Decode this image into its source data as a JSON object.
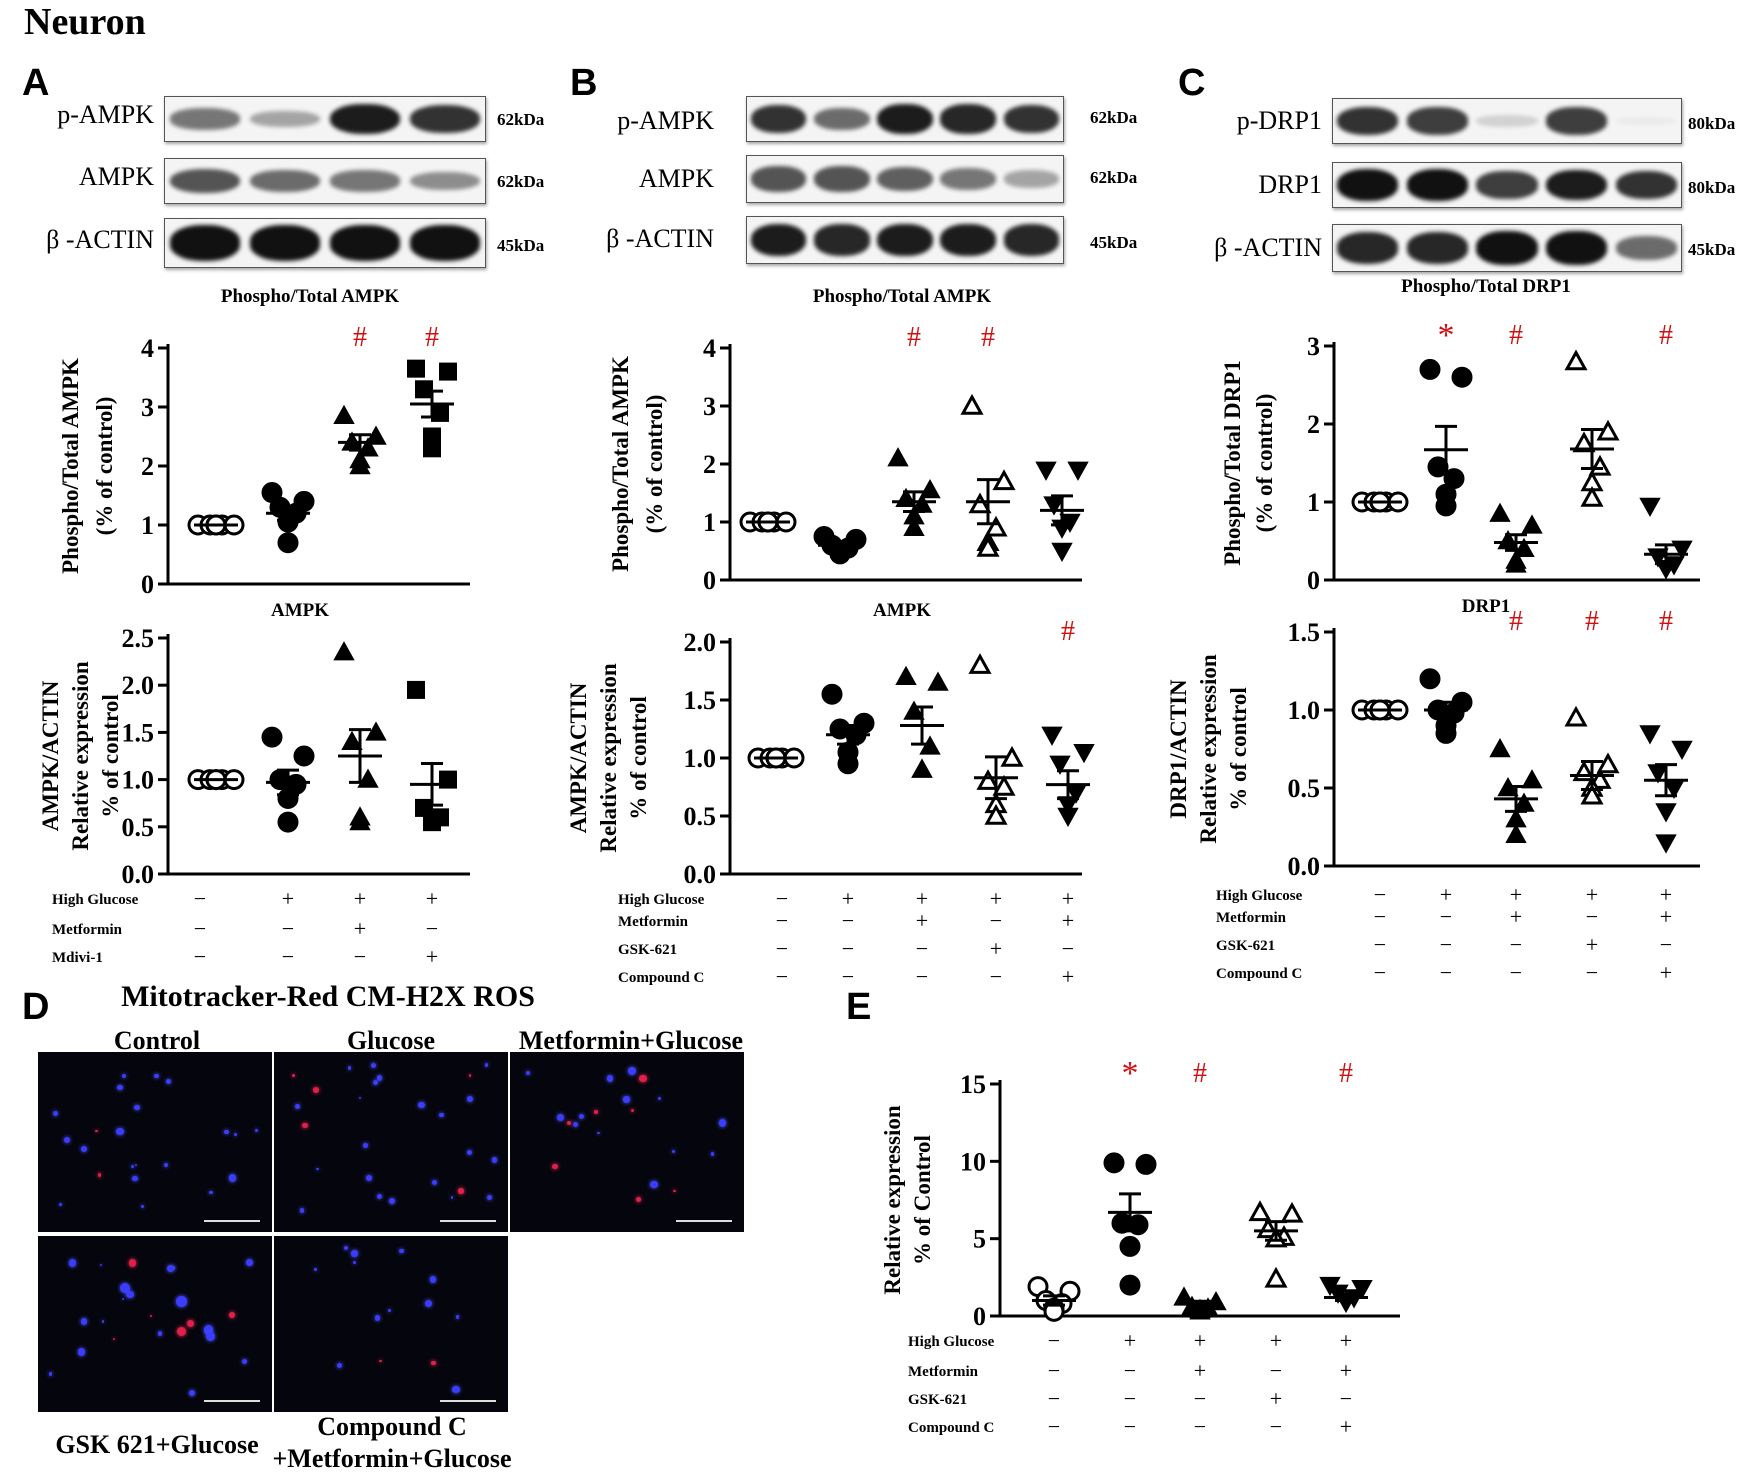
{
  "figure_title": "Neuron",
  "panel_letters": {
    "A": "A",
    "B": "B",
    "C": "C",
    "D": "D",
    "E": "E"
  },
  "colors": {
    "significance": "#d01010",
    "ink": "#000000"
  },
  "blots": {
    "A": {
      "rows": [
        {
          "label": "p-AMPK",
          "kda": "62kDa",
          "intensity": [
            0.55,
            0.35,
            0.95,
            0.85
          ]
        },
        {
          "label": "AMPK",
          "kda": "62kDa",
          "intensity": [
            0.7,
            0.6,
            0.55,
            0.45
          ]
        },
        {
          "label": "β -ACTIN",
          "kda": "45kDa",
          "intensity": [
            1,
            1,
            1,
            1
          ]
        }
      ]
    },
    "B": {
      "rows": [
        {
          "label": "p-AMPK",
          "kda": "62kDa",
          "intensity": [
            0.85,
            0.6,
            0.95,
            0.9,
            0.85
          ]
        },
        {
          "label": "AMPK",
          "kda": "62kDa",
          "intensity": [
            0.7,
            0.7,
            0.65,
            0.55,
            0.35
          ]
        },
        {
          "label": "β -ACTIN",
          "kda": "45kDa",
          "intensity": [
            0.95,
            0.9,
            0.95,
            0.95,
            0.9
          ]
        }
      ]
    },
    "C": {
      "rows": [
        {
          "label": "p-DRP1",
          "kda": "80kDa",
          "intensity": [
            0.85,
            0.8,
            0.15,
            0.8,
            0.02
          ]
        },
        {
          "label": "DRP1",
          "kda": "80kDa",
          "intensity": [
            1,
            1,
            0.8,
            0.95,
            0.85
          ]
        },
        {
          "label": "β -ACTIN",
          "kda": "45kDa",
          "intensity": [
            0.9,
            0.9,
            1,
            1,
            0.6
          ]
        }
      ]
    }
  },
  "chart_data": [
    {
      "id": "A-top",
      "type": "scatter",
      "title": "Phospho/Total AMPK",
      "ylabel": [
        "Phospho/Total AMPK",
        "(% of control)"
      ],
      "ylim": [
        0,
        4
      ],
      "yticks": [
        "0",
        "1",
        "2",
        "3",
        "4"
      ],
      "groups": [
        {
          "marker": "circle-open",
          "points": [
            1,
            1,
            1,
            1,
            1,
            1
          ],
          "mean": 1,
          "sem": 0,
          "sig": ""
        },
        {
          "marker": "circle",
          "points": [
            1.55,
            1.4,
            1.3,
            1.2,
            1.05,
            0.7
          ],
          "mean": 1.2,
          "sem": 0.12,
          "sig": ""
        },
        {
          "marker": "triangle",
          "points": [
            2.85,
            2.5,
            2.4,
            2.3,
            2.1,
            2.0
          ],
          "mean": 2.4,
          "sem": 0.13,
          "sig": "#"
        },
        {
          "marker": "square",
          "points": [
            3.65,
            3.6,
            3.3,
            2.9,
            2.5,
            2.3
          ],
          "mean": 3.05,
          "sem": 0.22,
          "sig": "#"
        }
      ]
    },
    {
      "id": "A-bottom",
      "type": "scatter",
      "title": "AMPK",
      "ylabel": [
        "AMPK/ACTIN",
        "Relative expression",
        "% of control"
      ],
      "ylim": [
        0,
        2.5
      ],
      "yticks": [
        "0.0",
        "0.5",
        "1.0",
        "1.5",
        "2.0",
        "2.5"
      ],
      "groups": [
        {
          "marker": "circle-open",
          "points": [
            1,
            1,
            1,
            1,
            1,
            1
          ],
          "mean": 1,
          "sem": 0,
          "sig": ""
        },
        {
          "marker": "circle",
          "points": [
            1.45,
            1.25,
            1.0,
            0.95,
            0.8,
            0.55
          ],
          "mean": 0.97,
          "sem": 0.13,
          "sig": ""
        },
        {
          "marker": "triangle",
          "points": [
            2.35,
            1.5,
            1.4,
            1.0,
            0.6,
            0.55
          ],
          "mean": 1.25,
          "sem": 0.28,
          "sig": ""
        },
        {
          "marker": "square",
          "points": [
            1.95,
            1.0,
            0.7,
            0.6,
            0.55,
            0.55
          ],
          "mean": 0.95,
          "sem": 0.22,
          "sig": ""
        }
      ]
    },
    {
      "id": "B-top",
      "type": "scatter",
      "title": "Phospho/Total AMPK",
      "ylabel": [
        "Phospho/Total AMPK",
        "(% of control)"
      ],
      "ylim": [
        0,
        4
      ],
      "yticks": [
        "0",
        "1",
        "2",
        "3",
        "4"
      ],
      "groups": [
        {
          "marker": "circle-open",
          "points": [
            1,
            1,
            1,
            1,
            1,
            1
          ],
          "mean": 1,
          "sem": 0,
          "sig": ""
        },
        {
          "marker": "circle",
          "points": [
            0.75,
            0.7,
            0.6,
            0.55,
            0.5,
            0.45
          ],
          "mean": 0.6,
          "sem": 0.05,
          "sig": ""
        },
        {
          "marker": "triangle",
          "points": [
            2.1,
            1.55,
            1.4,
            1.3,
            1.1,
            0.9
          ],
          "mean": 1.35,
          "sem": 0.17,
          "sig": "#"
        },
        {
          "marker": "triangle-open",
          "points": [
            3.0,
            1.7,
            1.3,
            0.9,
            0.65,
            0.55
          ],
          "mean": 1.35,
          "sem": 0.38,
          "sig": "#"
        },
        {
          "marker": "triangle-down",
          "points": [
            1.9,
            1.9,
            1.3,
            1.0,
            0.9,
            0.5
          ],
          "mean": 1.2,
          "sem": 0.25,
          "sig": ""
        }
      ]
    },
    {
      "id": "B-bottom",
      "type": "scatter",
      "title": "AMPK",
      "ylabel": [
        "AMPK/ACTIN",
        "Relative expression",
        "% of control"
      ],
      "ylim": [
        0,
        2.0
      ],
      "yticks": [
        "0.0",
        "0.5",
        "1.0",
        "1.5",
        "2.0"
      ],
      "groups": [
        {
          "marker": "circle-open",
          "points": [
            1,
            1,
            1,
            1,
            1,
            1
          ],
          "mean": 1,
          "sem": 0,
          "sig": ""
        },
        {
          "marker": "circle",
          "points": [
            1.55,
            1.3,
            1.25,
            1.2,
            1.05,
            0.95
          ],
          "mean": 1.2,
          "sem": 0.08,
          "sig": ""
        },
        {
          "marker": "triangle",
          "points": [
            1.7,
            1.65,
            1.4,
            1.1,
            0.9,
            0.9
          ],
          "mean": 1.28,
          "sem": 0.16,
          "sig": ""
        },
        {
          "marker": "triangle-open",
          "points": [
            1.8,
            1.0,
            0.8,
            0.75,
            0.6,
            0.5
          ],
          "mean": 0.83,
          "sem": 0.18,
          "sig": ""
        },
        {
          "marker": "triangle-down",
          "points": [
            1.2,
            1.05,
            0.95,
            0.7,
            0.6,
            0.5
          ],
          "mean": 0.77,
          "sem": 0.12,
          "sig": "#"
        }
      ]
    },
    {
      "id": "C-top",
      "type": "scatter",
      "title": "Phospho/Total DRP1",
      "ylabel": [
        "Phospho/Total DRP1",
        "(% of control)"
      ],
      "ylim": [
        0,
        3
      ],
      "yticks": [
        "0",
        "1",
        "2",
        "3"
      ],
      "groups": [
        {
          "marker": "circle-open",
          "points": [
            1,
            1,
            1,
            1,
            1,
            1
          ],
          "mean": 1,
          "sem": 0,
          "sig": ""
        },
        {
          "marker": "circle",
          "points": [
            2.7,
            2.6,
            1.45,
            1.3,
            1.1,
            0.95
          ],
          "mean": 1.67,
          "sem": 0.3,
          "sig": "*"
        },
        {
          "marker": "triangle",
          "points": [
            0.85,
            0.7,
            0.5,
            0.4,
            0.25,
            0.2
          ],
          "mean": 0.48,
          "sem": 0.1,
          "sig": "#"
        },
        {
          "marker": "triangle-open",
          "points": [
            2.8,
            1.9,
            1.75,
            1.45,
            1.25,
            1.05
          ],
          "mean": 1.68,
          "sem": 0.25,
          "sig": ""
        },
        {
          "marker": "triangle-down",
          "points": [
            0.95,
            0.4,
            0.3,
            0.2,
            0.15,
            0.15
          ],
          "mean": 0.33,
          "sem": 0.12,
          "sig": "#"
        }
      ]
    },
    {
      "id": "C-bottom",
      "type": "scatter",
      "title": "DRP1",
      "ylabel": [
        "DRP1/ACTIN",
        "Relative expression",
        "% of control"
      ],
      "ylim": [
        0,
        1.5
      ],
      "yticks": [
        "0.0",
        "0.5",
        "1.0",
        "1.5"
      ],
      "groups": [
        {
          "marker": "circle-open",
          "points": [
            1,
            1,
            1,
            1,
            1,
            1
          ],
          "mean": 1,
          "sem": 0,
          "sig": ""
        },
        {
          "marker": "circle",
          "points": [
            1.2,
            1.05,
            1.0,
            0.98,
            0.9,
            0.85
          ],
          "mean": 1.0,
          "sem": 0.05,
          "sig": ""
        },
        {
          "marker": "triangle",
          "points": [
            0.75,
            0.55,
            0.5,
            0.4,
            0.3,
            0.2
          ],
          "mean": 0.43,
          "sem": 0.08,
          "sig": "#"
        },
        {
          "marker": "triangle-open",
          "points": [
            0.95,
            0.65,
            0.6,
            0.55,
            0.5,
            0.45
          ],
          "mean": 0.58,
          "sem": 0.09,
          "sig": "#"
        },
        {
          "marker": "triangle-down",
          "points": [
            0.85,
            0.75,
            0.6,
            0.5,
            0.35,
            0.15
          ],
          "mean": 0.55,
          "sem": 0.1,
          "sig": "#"
        }
      ]
    },
    {
      "id": "E",
      "type": "scatter",
      "title": "",
      "ylabel": [
        "Relative expression",
        "% of Control"
      ],
      "ylim": [
        0,
        15
      ],
      "yticks": [
        "0",
        "5",
        "10",
        "15"
      ],
      "groups": [
        {
          "marker": "circle-open",
          "points": [
            1.9,
            1.6,
            1.0,
            0.8,
            0.5,
            0.3
          ],
          "mean": 1.0,
          "sem": 0.3,
          "sig": ""
        },
        {
          "marker": "circle",
          "points": [
            9.9,
            9.8,
            6.0,
            5.9,
            4.5,
            2.0
          ],
          "mean": 6.7,
          "sem": 1.2,
          "sig": "*"
        },
        {
          "marker": "triangle",
          "points": [
            1.2,
            0.9,
            0.6,
            0.5,
            0.4,
            0.3
          ],
          "mean": 0.8,
          "sem": 0.15,
          "sig": "#"
        },
        {
          "marker": "triangle-open",
          "points": [
            6.7,
            6.6,
            5.6,
            5.1,
            5.0,
            2.4
          ],
          "mean": 5.5,
          "sem": 0.6,
          "sig": ""
        },
        {
          "marker": "triangle-down",
          "points": [
            2.0,
            1.8,
            1.5,
            1.2,
            1.0,
            0.9
          ],
          "mean": 1.2,
          "sem": 0.2,
          "sig": "#"
        }
      ]
    }
  ],
  "conditions": {
    "A": {
      "rows": [
        {
          "label": "High Glucose",
          "signs": [
            "−",
            "+",
            "+",
            "+"
          ]
        },
        {
          "label": "Metformin",
          "signs": [
            "−",
            "−",
            "+",
            "−"
          ]
        },
        {
          "label": "Mdivi-1",
          "signs": [
            "−",
            "−",
            "−",
            "+"
          ]
        }
      ]
    },
    "B": {
      "rows": [
        {
          "label": "High Glucose",
          "signs": [
            "−",
            "+",
            "+",
            "+",
            "+"
          ]
        },
        {
          "label": "Metformin",
          "signs": [
            "−",
            "−",
            "+",
            "−",
            "+"
          ]
        },
        {
          "label": "GSK-621",
          "signs": [
            "−",
            "−",
            "−",
            "+",
            "−"
          ]
        },
        {
          "label": "Compound C",
          "signs": [
            "−",
            "−",
            "−",
            "−",
            "+"
          ]
        }
      ]
    },
    "C": {
      "rows": [
        {
          "label": "High Glucose",
          "signs": [
            "−",
            "+",
            "+",
            "+",
            "+"
          ]
        },
        {
          "label": "Metformin",
          "signs": [
            "−",
            "−",
            "+",
            "−",
            "+"
          ]
        },
        {
          "label": "GSK-621",
          "signs": [
            "−",
            "−",
            "−",
            "+",
            "−"
          ]
        },
        {
          "label": "Compound C",
          "signs": [
            "−",
            "−",
            "−",
            "−",
            "+"
          ]
        }
      ]
    },
    "E": {
      "rows": [
        {
          "label": "High Glucose",
          "signs": [
            "−",
            "+",
            "+",
            "+",
            "+"
          ]
        },
        {
          "label": "Metformin",
          "signs": [
            "−",
            "−",
            "+",
            "−",
            "+"
          ]
        },
        {
          "label": "GSK-621",
          "signs": [
            "−",
            "−",
            "−",
            "+",
            "−"
          ]
        },
        {
          "label": "Compound C",
          "signs": [
            "−",
            "−",
            "−",
            "−",
            "+"
          ]
        }
      ]
    }
  },
  "microscopy": {
    "title": "Mitotracker-Red CM-H2X ROS",
    "labels": {
      "control": "Control",
      "glucose": "Glucose",
      "metformin": "Metformin+Glucose",
      "gsk": "GSK 621+Glucose",
      "compound_line1": "Compound C",
      "compound_line2": "+Metformin+Glucose"
    }
  }
}
